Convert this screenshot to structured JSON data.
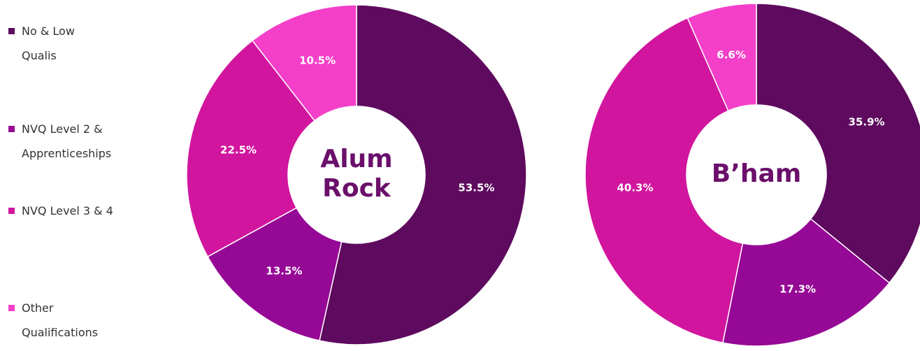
{
  "chart_data": [
    {
      "type": "donut",
      "title": "Alum Rock",
      "categories": [
        "No & Low Qualis",
        "NVQ Level 2 & Apprenticeships",
        "NVQ Level 3 & 4",
        "Other Qualifications"
      ],
      "colors": [
        "#5e0a5e",
        "#960896",
        "#d1159e",
        "#f43fc9"
      ],
      "values": [
        53.5,
        13.5,
        22.5,
        10.5
      ],
      "value_labels": [
        "53.5%",
        "13.5%",
        "22.5%",
        "10.5%"
      ]
    },
    {
      "type": "donut",
      "title": "B’ham",
      "values": [
        35.9,
        17.3,
        40.3,
        6.6
      ],
      "value_labels": [
        "35.9%",
        "17.3%",
        "40.3%",
        "6.6%"
      ]
    }
  ]
}
